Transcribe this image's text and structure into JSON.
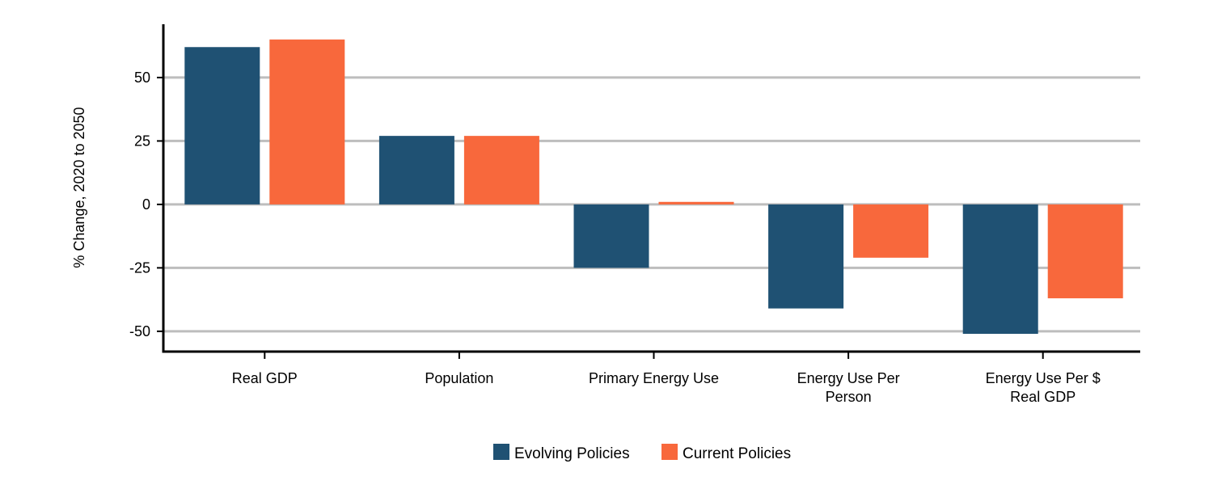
{
  "chart_data": {
    "type": "bar",
    "title": "",
    "xlabel": "",
    "ylabel": "% Change, 2020 to 2050",
    "ylim": [
      -58,
      71
    ],
    "yticks": [
      50,
      25,
      0,
      -25,
      -50
    ],
    "ytick_labels": [
      "50",
      "25",
      "0",
      "-25",
      "-50"
    ],
    "grid": "horizontal",
    "legend_position": "bottom",
    "categories": [
      [
        "Real GDP"
      ],
      [
        "Population"
      ],
      [
        "Primary Energy Use"
      ],
      [
        "Energy Use Per",
        "Person"
      ],
      [
        "Energy Use Per $",
        "Real GDP"
      ]
    ],
    "series": [
      {
        "name": "Evolving Policies",
        "color": "#1f5173",
        "values": [
          62,
          27,
          -25,
          -41,
          -51
        ]
      },
      {
        "name": "Current Policies",
        "color": "#f8683c",
        "values": [
          65,
          27,
          1,
          -21,
          -37
        ]
      }
    ]
  }
}
